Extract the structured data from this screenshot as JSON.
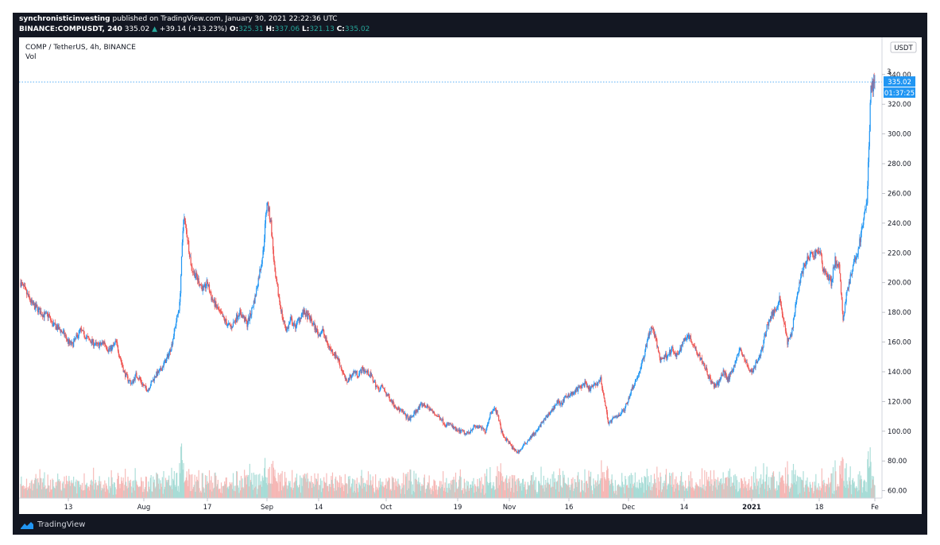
{
  "header": {
    "publisher": "synchronisticinvesting",
    "published_text": " published on TradingView.com, January 30, 2021 22:22:36 UTC",
    "symbol": "BINANCE:COMPUSDT, 240",
    "last": "335.02",
    "change_arrow": "▲",
    "change": "+39.14 (+13.23%)",
    "o_label": "O:",
    "o": "325.31",
    "h_label": "H:",
    "h": "337.06",
    "l_label": "L:",
    "l": "321.13",
    "c_label": "C:",
    "c": "335.02"
  },
  "legend": {
    "symbol_desc": "COMP / TetherUS, 4h, BINANCE",
    "vol_label": "Vol"
  },
  "footer": {
    "brand": "TradingView",
    "logo_icon": "tradingview-logo-icon"
  },
  "colors": {
    "up": "#26a69a",
    "down": "#ef5350",
    "up_candle": "#2196f3",
    "down_candle": "#ef5350",
    "accent": "#2196f3"
  },
  "chart_data": {
    "type": "candlestick",
    "currency_label": "USDT",
    "y_ticks": [
      60,
      80,
      100,
      120,
      140,
      160,
      180,
      200,
      220,
      240,
      260,
      280,
      300,
      320,
      340
    ],
    "y_tick_labels": [
      "60.00",
      "80.00",
      "100.00",
      "120.00",
      "140.00",
      "160.00",
      "180.00",
      "200.00",
      "220.00",
      "240.00",
      "260.00",
      "280.00",
      "300.00",
      "320.00",
      "340.00"
    ],
    "ylim": [
      55,
      365
    ],
    "x_tick_labels": [
      "13",
      "Aug",
      "17",
      "Sep",
      "14",
      "Oct",
      "19",
      "Nov",
      "16",
      "Dec",
      "14",
      "2021",
      "18",
      "Fe"
    ],
    "x_tick_days": [
      12,
      31,
      47,
      62,
      75,
      92,
      110,
      123,
      138,
      153,
      167,
      184,
      201,
      215
    ],
    "x_range_days": [
      0,
      216
    ],
    "last_price_label": "335.02",
    "countdown_label": "01:37:25",
    "last_price": 335.02,
    "price_path": [
      [
        0,
        200
      ],
      [
        1,
        195
      ],
      [
        2,
        190
      ],
      [
        3,
        185
      ],
      [
        4,
        183
      ],
      [
        5,
        180
      ],
      [
        6,
        178
      ],
      [
        7,
        178
      ],
      [
        8,
        172
      ],
      [
        9,
        170
      ],
      [
        10,
        168
      ],
      [
        11,
        165
      ],
      [
        12,
        160
      ],
      [
        13,
        158
      ],
      [
        14,
        163
      ],
      [
        15,
        168
      ],
      [
        16,
        165
      ],
      [
        17,
        162
      ],
      [
        18,
        160
      ],
      [
        19,
        158
      ],
      [
        20,
        158
      ],
      [
        21,
        160
      ],
      [
        22,
        155
      ],
      [
        23,
        156
      ],
      [
        24,
        160
      ],
      [
        25,
        150
      ],
      [
        26,
        140
      ],
      [
        27,
        135
      ],
      [
        28,
        132
      ],
      [
        29,
        138
      ],
      [
        30,
        135
      ],
      [
        31,
        130
      ],
      [
        32,
        128
      ],
      [
        33,
        133
      ],
      [
        34,
        138
      ],
      [
        35,
        140
      ],
      [
        36,
        145
      ],
      [
        37,
        150
      ],
      [
        38,
        158
      ],
      [
        39,
        172
      ],
      [
        40,
        185
      ],
      [
        41,
        245
      ],
      [
        42,
        230
      ],
      [
        43,
        210
      ],
      [
        44,
        205
      ],
      [
        45,
        200
      ],
      [
        46,
        195
      ],
      [
        47,
        200
      ],
      [
        48,
        190
      ],
      [
        49,
        185
      ],
      [
        50,
        180
      ],
      [
        51,
        176
      ],
      [
        52,
        172
      ],
      [
        53,
        170
      ],
      [
        54,
        175
      ],
      [
        55,
        180
      ],
      [
        56,
        177
      ],
      [
        57,
        172
      ],
      [
        58,
        180
      ],
      [
        59,
        190
      ],
      [
        60,
        205
      ],
      [
        61,
        220
      ],
      [
        62,
        255
      ],
      [
        63,
        240
      ],
      [
        64,
        205
      ],
      [
        65,
        190
      ],
      [
        66,
        175
      ],
      [
        67,
        168
      ],
      [
        68,
        175
      ],
      [
        69,
        170
      ],
      [
        70,
        175
      ],
      [
        71,
        180
      ],
      [
        72,
        178
      ],
      [
        73,
        175
      ],
      [
        74,
        170
      ],
      [
        75,
        165
      ],
      [
        76,
        168
      ],
      [
        77,
        160
      ],
      [
        78,
        155
      ],
      [
        79,
        152
      ],
      [
        80,
        148
      ],
      [
        81,
        140
      ],
      [
        82,
        133
      ],
      [
        83,
        137
      ],
      [
        84,
        140
      ],
      [
        85,
        138
      ],
      [
        86,
        142
      ],
      [
        87,
        140
      ],
      [
        88,
        138
      ],
      [
        89,
        133
      ],
      [
        90,
        128
      ],
      [
        91,
        130
      ],
      [
        92,
        125
      ],
      [
        93,
        122
      ],
      [
        94,
        118
      ],
      [
        95,
        115
      ],
      [
        96,
        113
      ],
      [
        97,
        110
      ],
      [
        98,
        108
      ],
      [
        99,
        112
      ],
      [
        100,
        115
      ],
      [
        101,
        118
      ],
      [
        102,
        117
      ],
      [
        103,
        115
      ],
      [
        104,
        112
      ],
      [
        105,
        110
      ],
      [
        106,
        108
      ],
      [
        107,
        104
      ],
      [
        108,
        105
      ],
      [
        109,
        102
      ],
      [
        110,
        100
      ],
      [
        111,
        100
      ],
      [
        112,
        98
      ],
      [
        113,
        100
      ],
      [
        114,
        103
      ],
      [
        115,
        103
      ],
      [
        116,
        102
      ],
      [
        117,
        100
      ],
      [
        118,
        110
      ],
      [
        119,
        116
      ],
      [
        120,
        112
      ],
      [
        121,
        100
      ],
      [
        122,
        95
      ],
      [
        123,
        92
      ],
      [
        124,
        88
      ],
      [
        125,
        86
      ],
      [
        126,
        88
      ],
      [
        127,
        92
      ],
      [
        128,
        95
      ],
      [
        129,
        98
      ],
      [
        130,
        100
      ],
      [
        131,
        105
      ],
      [
        132,
        108
      ],
      [
        133,
        112
      ],
      [
        134,
        115
      ],
      [
        135,
        120
      ],
      [
        136,
        118
      ],
      [
        137,
        122
      ],
      [
        138,
        125
      ],
      [
        139,
        125
      ],
      [
        140,
        128
      ],
      [
        141,
        130
      ],
      [
        142,
        132
      ],
      [
        143,
        128
      ],
      [
        144,
        130
      ],
      [
        145,
        132
      ],
      [
        146,
        135
      ],
      [
        147,
        120
      ],
      [
        148,
        105
      ],
      [
        149,
        108
      ],
      [
        150,
        110
      ],
      [
        151,
        112
      ],
      [
        152,
        115
      ],
      [
        153,
        122
      ],
      [
        154,
        130
      ],
      [
        155,
        135
      ],
      [
        156,
        142
      ],
      [
        157,
        152
      ],
      [
        158,
        165
      ],
      [
        159,
        170
      ],
      [
        160,
        160
      ],
      [
        161,
        148
      ],
      [
        162,
        150
      ],
      [
        163,
        152
      ],
      [
        164,
        155
      ],
      [
        165,
        150
      ],
      [
        166,
        155
      ],
      [
        167,
        162
      ],
      [
        168,
        165
      ],
      [
        169,
        160
      ],
      [
        170,
        155
      ],
      [
        171,
        150
      ],
      [
        172,
        145
      ],
      [
        173,
        138
      ],
      [
        174,
        132
      ],
      [
        175,
        130
      ],
      [
        176,
        135
      ],
      [
        177,
        140
      ],
      [
        178,
        135
      ],
      [
        179,
        140
      ],
      [
        180,
        148
      ],
      [
        181,
        155
      ],
      [
        182,
        150
      ],
      [
        183,
        143
      ],
      [
        184,
        140
      ],
      [
        185,
        145
      ],
      [
        186,
        150
      ],
      [
        187,
        160
      ],
      [
        188,
        172
      ],
      [
        189,
        178
      ],
      [
        190,
        182
      ],
      [
        191,
        190
      ],
      [
        192,
        175
      ],
      [
        193,
        160
      ],
      [
        194,
        165
      ],
      [
        195,
        185
      ],
      [
        196,
        200
      ],
      [
        197,
        210
      ],
      [
        198,
        215
      ],
      [
        199,
        218
      ],
      [
        200,
        220
      ],
      [
        201,
        222
      ],
      [
        202,
        210
      ],
      [
        203,
        205
      ],
      [
        204,
        200
      ],
      [
        205,
        215
      ],
      [
        206,
        210
      ],
      [
        207,
        175
      ],
      [
        208,
        195
      ],
      [
        209,
        205
      ],
      [
        210,
        215
      ],
      [
        211,
        225
      ],
      [
        212,
        240
      ],
      [
        213,
        255
      ],
      [
        214,
        330
      ],
      [
        215,
        335.02
      ]
    ]
  }
}
